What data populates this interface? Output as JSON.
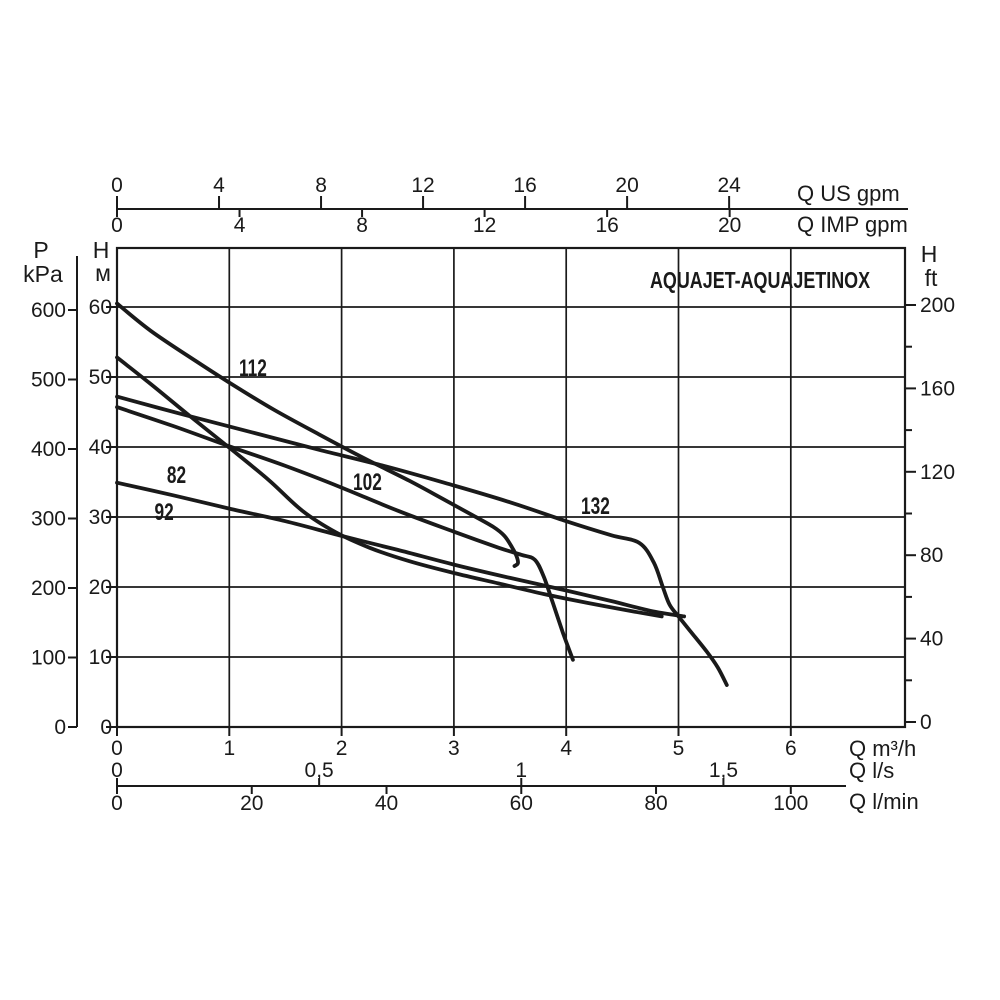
{
  "title": "AQUAJET-AQUAJETINOX",
  "colors": {
    "ink": "#1a1a1a",
    "background": "#ffffff"
  },
  "chart_data": {
    "type": "line",
    "title": "AQUAJET-AQUAJETINOX",
    "grid": true,
    "q_range_m3h": [
      0,
      7.02
    ],
    "h_range_m": [
      0,
      68.4
    ],
    "axes": {
      "top_us": {
        "label": "Q US gpm",
        "ticks": [
          0,
          4,
          8,
          12,
          16,
          20,
          24
        ],
        "units_per_m3h": 4.403
      },
      "top_imp": {
        "label": "Q IMP gpm",
        "ticks": [
          0,
          4,
          8,
          12,
          16,
          20
        ],
        "units_per_m3h": 3.666
      },
      "bottom_m3h": {
        "label": "Q m³/h",
        "ticks": [
          0,
          1,
          2,
          3,
          4,
          5,
          6
        ]
      },
      "bottom_ls": {
        "label": "Q l/s",
        "ticks": [
          {
            "text": "0",
            "value": 0
          },
          {
            "text": "0,5",
            "value": 0.5
          },
          {
            "text": "1",
            "value": 1
          },
          {
            "text": "1,5",
            "value": 1.5
          }
        ],
        "m3h_per_unit": 3.6
      },
      "bottom_lmin": {
        "label": "Q l/min",
        "ticks": [
          0,
          20,
          40,
          60,
          80,
          100
        ],
        "m3h_per_unit": 0.06
      },
      "left_kpa": {
        "label_line1": "P",
        "label_line2": "kPa",
        "ticks": [
          0,
          100,
          200,
          300,
          400,
          500,
          600
        ]
      },
      "left_m": {
        "label_line1": "H",
        "label_line2": "м",
        "ticks": [
          0,
          10,
          20,
          30,
          40,
          50,
          60
        ]
      },
      "right_ft": {
        "label_line1": "H",
        "label_line2": "ft",
        "major_ticks": [
          0,
          40,
          80,
          120,
          160,
          200
        ],
        "minor_ticks": [
          20,
          60,
          100,
          140,
          180
        ]
      }
    },
    "series": [
      {
        "name": "112",
        "label": "112",
        "label_q": 1.21,
        "label_h": 51.3,
        "points": [
          [
            0,
            60.5
          ],
          [
            0.3,
            56.6
          ],
          [
            0.7,
            52.3
          ],
          [
            1.0,
            49.2
          ],
          [
            1.4,
            45.3
          ],
          [
            1.8,
            41.8
          ],
          [
            2.2,
            38.4
          ],
          [
            2.6,
            35.2
          ],
          [
            2.9,
            32.6
          ],
          [
            3.15,
            30.4
          ],
          [
            3.35,
            28.6
          ],
          [
            3.45,
            27.3
          ],
          [
            3.52,
            25.6
          ],
          [
            3.56,
            24.3
          ],
          [
            3.57,
            23.4
          ],
          [
            3.54,
            23.0
          ]
        ]
      },
      {
        "name": "82",
        "label": "82",
        "label_q": 0.53,
        "label_h": 36.0,
        "points": [
          [
            0,
            52.8
          ],
          [
            0.3,
            49.0
          ],
          [
            0.65,
            44.4
          ],
          [
            1.0,
            39.9
          ],
          [
            1.35,
            35.3
          ],
          [
            1.65,
            30.9
          ],
          [
            1.95,
            27.8
          ],
          [
            2.25,
            25.6
          ],
          [
            2.6,
            23.7
          ],
          [
            3.0,
            22.0
          ],
          [
            3.4,
            20.5
          ],
          [
            3.8,
            19.0
          ],
          [
            4.2,
            17.7
          ],
          [
            4.6,
            16.5
          ],
          [
            4.85,
            15.8
          ]
        ]
      },
      {
        "name": "92",
        "label": "92",
        "label_q": 0.42,
        "label_h": 30.7,
        "points": [
          [
            0,
            34.9
          ],
          [
            0.5,
            33.1
          ],
          [
            1.0,
            31.2
          ],
          [
            1.5,
            29.4
          ],
          [
            2.0,
            27.3
          ],
          [
            2.5,
            25.3
          ],
          [
            3.0,
            23.2
          ],
          [
            3.5,
            21.3
          ],
          [
            4.0,
            19.5
          ],
          [
            4.4,
            18.0
          ],
          [
            4.75,
            16.6
          ],
          [
            5.05,
            15.8
          ]
        ]
      },
      {
        "name": "102",
        "label": "102",
        "label_q": 2.23,
        "label_h": 35.0,
        "points": [
          [
            0,
            45.7
          ],
          [
            0.5,
            43.0
          ],
          [
            1.0,
            40.1
          ],
          [
            1.5,
            37.3
          ],
          [
            2.0,
            34.2
          ],
          [
            2.5,
            30.9
          ],
          [
            3.0,
            27.9
          ],
          [
            3.4,
            25.6
          ],
          [
            3.6,
            24.6
          ],
          [
            3.72,
            23.9
          ],
          [
            3.8,
            21.5
          ],
          [
            3.88,
            17.8
          ],
          [
            3.97,
            13.5
          ],
          [
            4.06,
            9.6
          ]
        ]
      },
      {
        "name": "132",
        "label": "132",
        "label_q": 4.26,
        "label_h": 31.6,
        "points": [
          [
            0,
            47.2
          ],
          [
            0.6,
            44.6
          ],
          [
            1.2,
            42.1
          ],
          [
            1.8,
            39.6
          ],
          [
            2.4,
            37.2
          ],
          [
            3.0,
            34.5
          ],
          [
            3.5,
            32.1
          ],
          [
            4.0,
            29.4
          ],
          [
            4.4,
            27.4
          ],
          [
            4.65,
            26.3
          ],
          [
            4.78,
            23.5
          ],
          [
            4.86,
            20.0
          ],
          [
            4.92,
            17.5
          ],
          [
            5.0,
            15.8
          ],
          [
            5.1,
            13.8
          ],
          [
            5.25,
            10.8
          ],
          [
            5.35,
            8.5
          ],
          [
            5.43,
            6.0
          ]
        ]
      }
    ]
  }
}
